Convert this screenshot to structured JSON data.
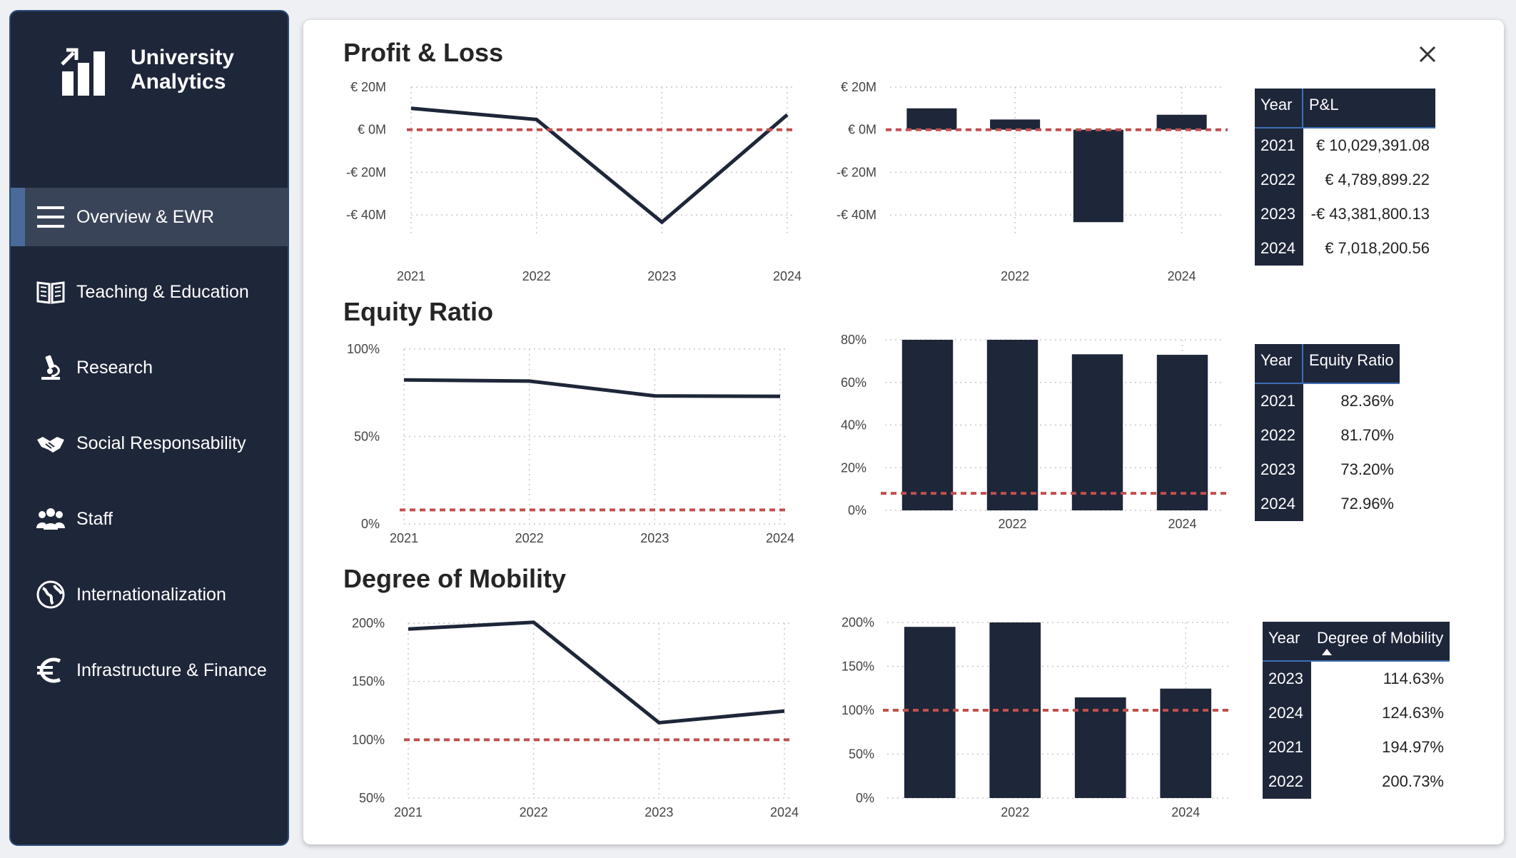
{
  "brand": {
    "line1": "University",
    "line2": "Analytics"
  },
  "nav": [
    {
      "label": "Overview & EWR",
      "icon": "menu-icon",
      "active": true
    },
    {
      "label": "Teaching & Education",
      "icon": "book-icon"
    },
    {
      "label": "Research",
      "icon": "microscope-icon"
    },
    {
      "label": "Social Responsability",
      "icon": "handshake-icon"
    },
    {
      "label": "Staff",
      "icon": "group-icon"
    },
    {
      "label": "Internationalization",
      "icon": "globe-icon"
    },
    {
      "label": "Infrastructure & Finance",
      "icon": "euro-icon"
    }
  ],
  "sections": {
    "pnl": "Profit & Loss",
    "equity": "Equity Ratio",
    "mobility": "Degree of Mobility"
  },
  "colors": {
    "dark": "#1e2639",
    "threshold": "#c0504d",
    "accent": "#3f6fb5"
  },
  "tables": {
    "pnl": {
      "headers": [
        "Year",
        "P&L"
      ],
      "rows": [
        [
          "2021",
          "€ 10,029,391.08"
        ],
        [
          "2022",
          "€ 4,789,899.22"
        ],
        [
          "2023",
          "-€ 43,381,800.13"
        ],
        [
          "2024",
          "€ 7,018,200.56"
        ]
      ]
    },
    "equity": {
      "headers": [
        "Year",
        "Equity Ratio"
      ],
      "rows": [
        [
          "2021",
          "82.36%"
        ],
        [
          "2022",
          "81.70%"
        ],
        [
          "2023",
          "73.20%"
        ],
        [
          "2024",
          "72.96%"
        ]
      ]
    },
    "mobility": {
      "headers": [
        "Year",
        "Degree of Mobility"
      ],
      "sort": "ascending",
      "rows": [
        [
          "2023",
          "114.63%"
        ],
        [
          "2024",
          "124.63%"
        ],
        [
          "2021",
          "194.97%"
        ],
        [
          "2022",
          "200.73%"
        ]
      ]
    }
  },
  "chart_data": [
    {
      "id": "pnl-line",
      "type": "line",
      "x": [
        "2021",
        "2022",
        "2023",
        "2024"
      ],
      "series": [
        {
          "values": [
            10.03,
            4.79,
            -43.38,
            7.02
          ]
        }
      ],
      "threshold": 0,
      "ylim": [
        -50,
        20
      ],
      "yticks": [
        20,
        0,
        -20,
        -40
      ],
      "ytick_labels": [
        "€ 20M",
        "€ 0M",
        "-€ 20M",
        "-€ 40M"
      ],
      "xtick_labels": [
        "2021",
        "2022",
        "2023",
        "2024"
      ],
      "grid": true
    },
    {
      "id": "pnl-bar",
      "type": "bar",
      "categories": [
        "2021",
        "2022",
        "2023",
        "2024"
      ],
      "values": [
        10.03,
        4.79,
        -43.38,
        7.02
      ],
      "threshold": 0,
      "ylim": [
        -50,
        20
      ],
      "yticks": [
        20,
        0,
        -20,
        -40
      ],
      "ytick_labels": [
        "€ 20M",
        "€ 0M",
        "-€ 20M",
        "-€ 40M"
      ],
      "xtick_labels": [
        "",
        "2022",
        "",
        "2024"
      ],
      "grid": true
    },
    {
      "id": "equity-line",
      "type": "line",
      "x": [
        "2021",
        "2022",
        "2023",
        "2024"
      ],
      "series": [
        {
          "values": [
            82.36,
            81.7,
            73.2,
            72.96
          ]
        }
      ],
      "threshold": 8,
      "ylim": [
        0,
        100
      ],
      "yticks": [
        100,
        50,
        0
      ],
      "ytick_labels": [
        "100%",
        "50%",
        "0%"
      ],
      "xtick_labels": [
        "2021",
        "2022",
        "2023",
        "2024"
      ],
      "grid": true
    },
    {
      "id": "equity-bar",
      "type": "bar",
      "categories": [
        "2021",
        "2022",
        "2023",
        "2024"
      ],
      "values": [
        82.36,
        81.7,
        73.2,
        72.96
      ],
      "threshold": 8,
      "ylim": [
        0,
        80
      ],
      "yticks": [
        80,
        60,
        40,
        20,
        0
      ],
      "ytick_labels": [
        "80%",
        "60%",
        "40%",
        "20%",
        "0%"
      ],
      "xtick_labels": [
        "",
        "2022",
        "",
        "2024"
      ],
      "grid": true
    },
    {
      "id": "mobility-line",
      "type": "line",
      "x": [
        "2021",
        "2022",
        "2023",
        "2024"
      ],
      "series": [
        {
          "values": [
            194.97,
            200.73,
            114.63,
            124.63
          ]
        }
      ],
      "threshold": 100,
      "ylim": [
        50,
        200
      ],
      "yticks": [
        200,
        150,
        100,
        50
      ],
      "ytick_labels": [
        "200%",
        "150%",
        "100%",
        "50%"
      ],
      "xtick_labels": [
        "2021",
        "2022",
        "2023",
        "2024"
      ],
      "grid": true
    },
    {
      "id": "mobility-bar",
      "type": "bar",
      "categories": [
        "2021",
        "2022",
        "2023",
        "2024"
      ],
      "values": [
        194.97,
        200.73,
        114.63,
        124.63
      ],
      "threshold": 100,
      "ylim": [
        0,
        200
      ],
      "yticks": [
        200,
        150,
        100,
        50,
        0
      ],
      "ytick_labels": [
        "200%",
        "150%",
        "100%",
        "50%",
        "0%"
      ],
      "xtick_labels": [
        "",
        "2022",
        "",
        "2024"
      ],
      "grid": true
    }
  ]
}
